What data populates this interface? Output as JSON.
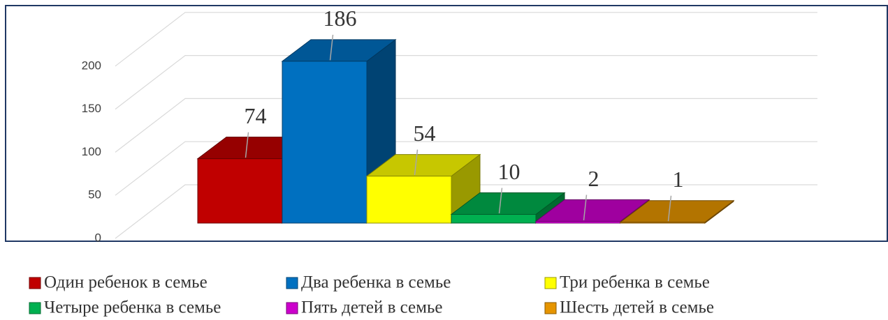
{
  "chart_data": {
    "type": "bar",
    "series": [
      {
        "name": "Один ребенок в семье",
        "color": "#c00000",
        "values": [
          74
        ]
      },
      {
        "name": "Два ребенка в семье",
        "color": "#0070c0",
        "values": [
          186
        ]
      },
      {
        "name": "Три ребенка в семье",
        "color": "#ffff00",
        "values": [
          54
        ]
      },
      {
        "name": "Четыре ребенка в семье",
        "color": "#00b050",
        "values": [
          10
        ]
      },
      {
        "name": "Пять детей в семье",
        "color": "#cc00cc",
        "values": [
          2
        ]
      },
      {
        "name": "Шесть детей в семье",
        "color": "#e69500",
        "values": [
          1
        ]
      }
    ],
    "ylim": [
      0,
      250
    ],
    "yticks": [
      0,
      50,
      100,
      150,
      200
    ],
    "grid": true
  }
}
